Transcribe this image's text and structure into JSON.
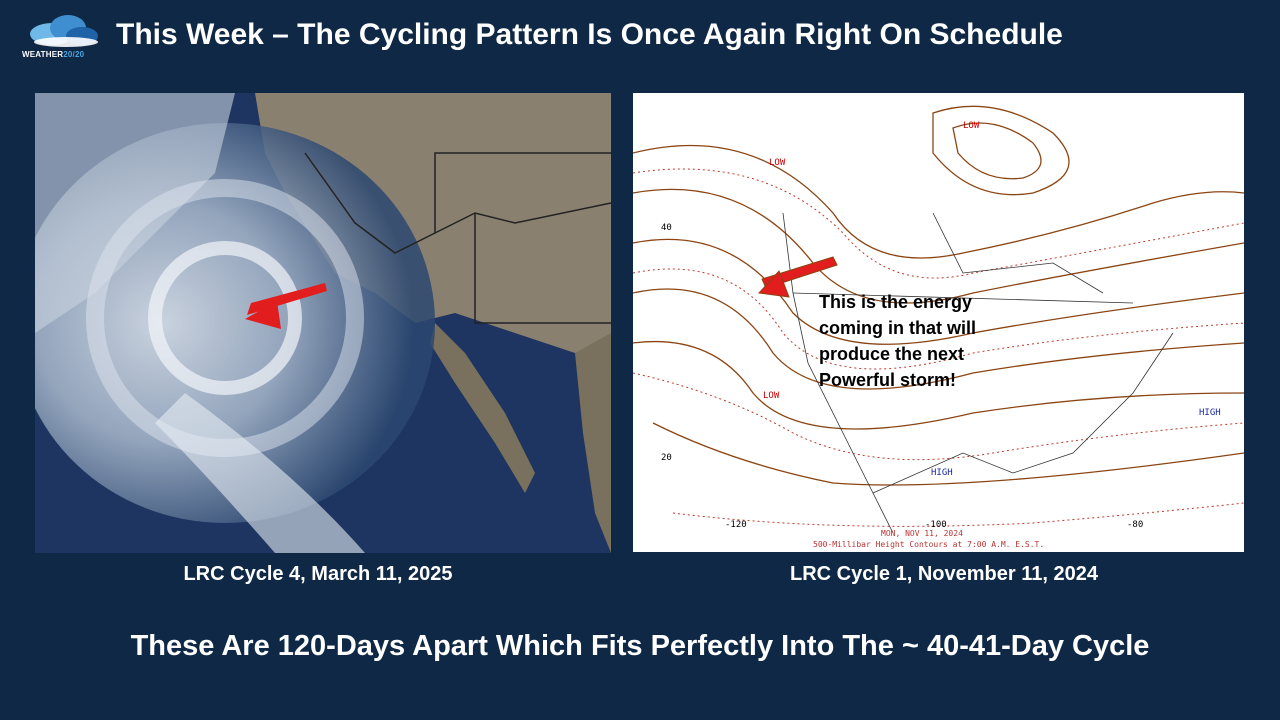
{
  "logo": {
    "text_main": "WEATHER",
    "text_accent": "20/20",
    "icon": "cloud-icon"
  },
  "title": "This Week – The Cycling Pattern Is Once Again Right On Schedule",
  "left_panel": {
    "caption": "LRC Cycle 4, March 11, 2025",
    "image": "satellite-image",
    "arrow_color": "#e11d1d"
  },
  "right_panel": {
    "caption": "LRC Cycle 1, November 11, 2024",
    "image": "500mb-height-map",
    "arrow_color": "#e11d1d",
    "annotation": [
      "This is the energy",
      "coming in that will",
      "produce the next",
      "Powerful storm!"
    ],
    "labels": {
      "low1": "LOW",
      "low2": "LOW",
      "low3": "LOW",
      "high1": "HIGH",
      "high2": "HIGH",
      "lat40": "40",
      "lat20": "20",
      "lon120": "-120",
      "lon100": "-100",
      "lon80": "-80"
    },
    "footer_date": "MON, NOV 11, 2024",
    "footer_caption": "500-Millibar Height Contours at 7:00 A.M. E.S.T."
  },
  "bottom_text": "These Are 120-Days Apart Which Fits Perfectly Into The ~ 40-41-Day Cycle",
  "colors": {
    "background": "#0f2845",
    "text": "#ffffff",
    "contour": "#8b4513",
    "contour_dotted": "#c0392b"
  }
}
